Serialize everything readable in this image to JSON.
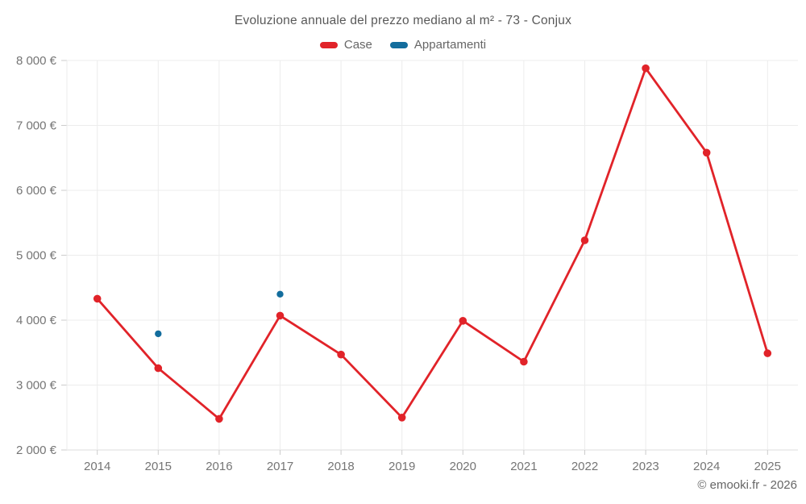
{
  "chart_data": {
    "type": "line",
    "title": "Evoluzione annuale del prezzo mediano al m² - 73 - Conjux",
    "categories": [
      "2014",
      "2015",
      "2016",
      "2017",
      "2018",
      "2019",
      "2020",
      "2021",
      "2022",
      "2023",
      "2024",
      "2025"
    ],
    "series": [
      {
        "name": "Case",
        "type": "line",
        "color": "#e12329",
        "values": [
          4330,
          3260,
          2480,
          4070,
          3470,
          2500,
          3990,
          3360,
          5230,
          7880,
          6580,
          3490
        ]
      },
      {
        "name": "Appartamenti",
        "type": "scatter",
        "color": "#136d9d",
        "values": [
          null,
          3790,
          null,
          4400,
          null,
          null,
          null,
          null,
          null,
          null,
          null,
          null
        ]
      }
    ],
    "ylim": [
      2000,
      8000
    ],
    "y_ticks": [
      2000,
      3000,
      4000,
      5000,
      6000,
      7000,
      8000
    ],
    "y_tick_labels": [
      "2 000 €",
      "3 000 €",
      "4 000 €",
      "5 000 €",
      "6 000 €",
      "7 000 €",
      "8 000 €"
    ],
    "grid": true,
    "legend_position": "top",
    "currency": "€"
  },
  "footer": {
    "copyright": "© emooki.fr - 2026"
  }
}
